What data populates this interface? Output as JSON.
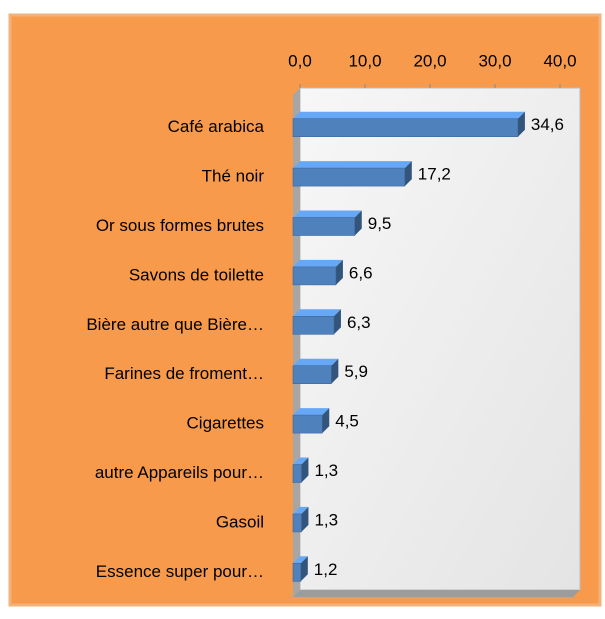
{
  "chart_data": {
    "type": "bar",
    "orientation": "horizontal",
    "categories": [
      "Café arabica",
      "Thé noir",
      "Or sous formes brutes",
      "Savons de toilette",
      "Bière autre que Bière…",
      "Farines de froment…",
      "Cigarettes",
      "autre Appareils pour…",
      "Gasoil",
      "Essence super pour…"
    ],
    "values": [
      34.6,
      17.2,
      9.5,
      6.6,
      6.3,
      5.9,
      4.5,
      1.3,
      1.3,
      1.2
    ],
    "value_labels": [
      "34,6",
      "17,2",
      "9,5",
      "6,6",
      "6,3",
      "5,9",
      "4,5",
      "1,3",
      "1,3",
      "1,2"
    ],
    "color": "#4f81bd",
    "xlim": [
      0,
      40
    ],
    "xticks": [
      {
        "value": 0,
        "label": "0,0"
      },
      {
        "value": 10,
        "label": "10,0"
      },
      {
        "value": 20,
        "label": "20,0"
      },
      {
        "value": 30,
        "label": "30,0"
      },
      {
        "value": 40,
        "label": "40,0"
      }
    ]
  }
}
